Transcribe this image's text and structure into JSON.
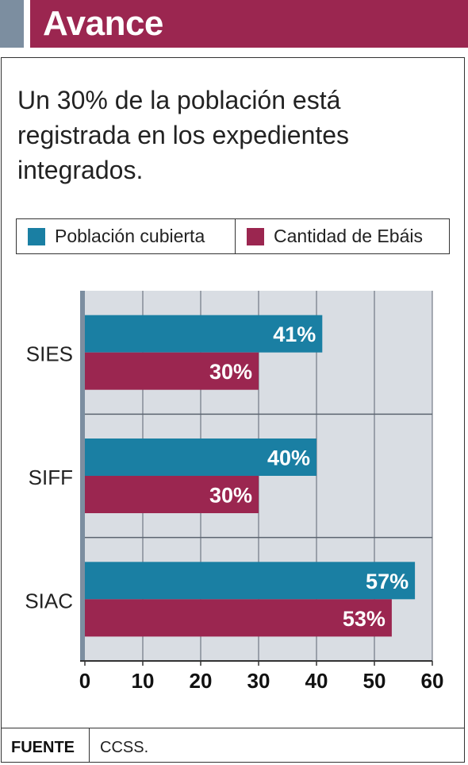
{
  "header": {
    "title": "Avance"
  },
  "subtitle": "Un 30% de la población está registrada en los expedientes integrados.",
  "legend": [
    {
      "label": "Población cubierta",
      "color": "#1a7fa3"
    },
    {
      "label": "Cantidad de Ebáis",
      "color": "#9b2650"
    }
  ],
  "chart_data": {
    "type": "bar",
    "orientation": "horizontal",
    "categories": [
      "SIES",
      "SIFF",
      "SIAC"
    ],
    "series": [
      {
        "name": "Población cubierta",
        "values": [
          41,
          40,
          57
        ],
        "labels": [
          "41%",
          "40%",
          "57%"
        ],
        "color": "#1a7fa3"
      },
      {
        "name": "Cantidad de Ebáis",
        "values": [
          30,
          30,
          53
        ],
        "labels": [
          "30%",
          "30%",
          "53%"
        ],
        "color": "#9b2650"
      }
    ],
    "xlim": [
      0,
      60
    ],
    "xticks": [
      "0",
      "10",
      "20",
      "30",
      "40",
      "50",
      "60"
    ],
    "grid": "vertical",
    "legend_position": "top"
  },
  "footer": {
    "label": "FUENTE",
    "source": "CCSS."
  }
}
